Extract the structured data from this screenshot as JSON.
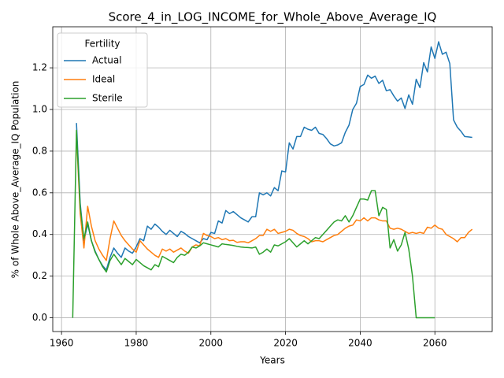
{
  "chart_data": {
    "type": "line",
    "title": "Score_4_in_LOG_INCOME_for_Whole_Above_Average_IQ",
    "xlabel": "Years",
    "ylabel": "% of Whole Above_Average_IQ Population",
    "legend_title": "Fertility",
    "legend_loc": "upper left",
    "grid": true,
    "xlim": [
      1957.65,
      2075.35
    ],
    "ylim": [
      -0.066,
      1.397
    ],
    "xticks": [
      1960,
      1980,
      2000,
      2020,
      2040,
      2060
    ],
    "yticks": [
      {
        "value": 0,
        "label": "0.0"
      },
      0.2,
      0.4,
      0.6,
      0.8,
      {
        "value": 1,
        "label": "1.0"
      },
      1.2
    ],
    "x": [
      1963,
      1964,
      1965,
      1966,
      1967,
      1968,
      1969,
      1970,
      1971,
      1972,
      1973,
      1974,
      1975,
      1976,
      1977,
      1978,
      1979,
      1980,
      1981,
      1982,
      1983,
      1984,
      1985,
      1986,
      1987,
      1988,
      1989,
      1990,
      1991,
      1992,
      1993,
      1994,
      1995,
      1996,
      1997,
      1998,
      1999,
      2000,
      2001,
      2002,
      2003,
      2004,
      2005,
      2006,
      2007,
      2008,
      2009,
      2010,
      2011,
      2012,
      2013,
      2014,
      2015,
      2016,
      2017,
      2018,
      2019,
      2020,
      2021,
      2022,
      2023,
      2024,
      2025,
      2026,
      2027,
      2028,
      2029,
      2030,
      2031,
      2032,
      2033,
      2034,
      2035,
      2036,
      2037,
      2038,
      2039,
      2040,
      2041,
      2042,
      2043,
      2044,
      2045,
      2046,
      2047,
      2048,
      2049,
      2050,
      2051,
      2052,
      2053,
      2054,
      2055,
      2056,
      2057,
      2058,
      2059,
      2060,
      2061,
      2062,
      2063,
      2064,
      2065,
      2066,
      2067,
      2068,
      2069,
      2070
    ],
    "series": [
      {
        "name": "Actual",
        "color": "#1f77b4",
        "values": [
          null,
          0.935,
          0.55,
          0.37,
          0.45,
          0.37,
          0.32,
          0.28,
          0.25,
          0.23,
          0.29,
          0.335,
          0.31,
          0.29,
          0.335,
          0.32,
          0.31,
          0.34,
          0.38,
          0.37,
          0.44,
          0.425,
          0.45,
          0.435,
          0.415,
          0.4,
          0.42,
          0.405,
          0.39,
          0.415,
          0.405,
          0.39,
          0.38,
          0.37,
          0.36,
          0.38,
          0.375,
          0.41,
          0.405,
          0.465,
          0.455,
          0.515,
          0.5,
          0.51,
          0.495,
          0.48,
          0.47,
          0.46,
          0.485,
          0.485,
          0.6,
          0.59,
          0.6,
          0.585,
          0.625,
          0.61,
          0.705,
          0.7,
          0.84,
          0.81,
          0.87,
          0.87,
          0.915,
          0.905,
          0.9,
          0.915,
          0.885,
          0.88,
          0.86,
          0.835,
          0.825,
          0.83,
          0.84,
          0.89,
          0.925,
          1.0,
          1.03,
          1.11,
          1.12,
          1.165,
          1.15,
          1.16,
          1.125,
          1.14,
          1.09,
          1.095,
          1.065,
          1.04,
          1.055,
          1.005,
          1.07,
          1.025,
          1.145,
          1.105,
          1.225,
          1.18,
          1.3,
          1.245,
          1.325,
          1.265,
          1.275,
          1.22,
          0.95,
          0.915,
          0.895,
          0.87,
          0.868,
          0.866
        ]
      },
      {
        "name": "Ideal",
        "color": "#ff7f0e",
        "values": [
          null,
          0.88,
          0.5,
          0.335,
          0.535,
          0.44,
          0.37,
          0.33,
          0.3,
          0.275,
          0.38,
          0.465,
          0.43,
          0.395,
          0.37,
          0.35,
          0.33,
          0.315,
          0.37,
          0.35,
          0.33,
          0.315,
          0.3,
          0.29,
          0.33,
          0.32,
          0.33,
          0.315,
          0.325,
          0.335,
          0.32,
          0.31,
          0.34,
          0.35,
          0.345,
          0.405,
          0.395,
          0.39,
          0.38,
          0.385,
          0.375,
          0.38,
          0.37,
          0.372,
          0.362,
          0.365,
          0.365,
          0.36,
          0.37,
          0.38,
          0.395,
          0.395,
          0.425,
          0.415,
          0.425,
          0.405,
          0.41,
          0.415,
          0.425,
          0.42,
          0.405,
          0.395,
          0.39,
          0.38,
          0.365,
          0.37,
          0.37,
          0.365,
          0.375,
          0.385,
          0.395,
          0.4,
          0.415,
          0.43,
          0.44,
          0.445,
          0.47,
          0.465,
          0.48,
          0.465,
          0.48,
          0.48,
          0.47,
          0.465,
          0.465,
          0.43,
          0.425,
          0.43,
          0.425,
          0.415,
          0.405,
          0.41,
          0.405,
          0.41,
          0.405,
          0.435,
          0.43,
          0.445,
          0.43,
          0.425,
          0.4,
          0.39,
          0.38,
          0.365,
          0.385,
          0.385,
          0.41,
          0.425
        ]
      },
      {
        "name": "Sterile",
        "color": "#2ca02c",
        "values": [
          0,
          0.9,
          0.53,
          0.38,
          0.46,
          0.37,
          0.315,
          0.28,
          0.245,
          0.22,
          0.275,
          0.305,
          0.28,
          0.255,
          0.285,
          0.27,
          0.255,
          0.28,
          0.265,
          0.25,
          0.24,
          0.23,
          0.255,
          0.245,
          0.295,
          0.285,
          0.275,
          0.265,
          0.29,
          0.305,
          0.3,
          0.315,
          0.34,
          0.335,
          0.345,
          0.36,
          0.355,
          0.35,
          0.345,
          0.34,
          0.355,
          0.352,
          0.35,
          0.347,
          0.343,
          0.34,
          0.338,
          0.337,
          0.335,
          0.34,
          0.305,
          0.315,
          0.33,
          0.315,
          0.35,
          0.345,
          0.355,
          0.365,
          0.38,
          0.36,
          0.34,
          0.355,
          0.37,
          0.355,
          0.37,
          0.385,
          0.38,
          0.4,
          0.42,
          0.44,
          0.46,
          0.47,
          0.465,
          0.49,
          0.46,
          0.49,
          0.53,
          0.57,
          0.57,
          0.565,
          0.61,
          0.61,
          0.49,
          0.53,
          0.52,
          0.335,
          0.375,
          0.32,
          0.35,
          0.41,
          0.33,
          0.2,
          0,
          0,
          0,
          0,
          0,
          0,
          null,
          null,
          null,
          null,
          null,
          null,
          null,
          null,
          null,
          null
        ]
      }
    ]
  }
}
